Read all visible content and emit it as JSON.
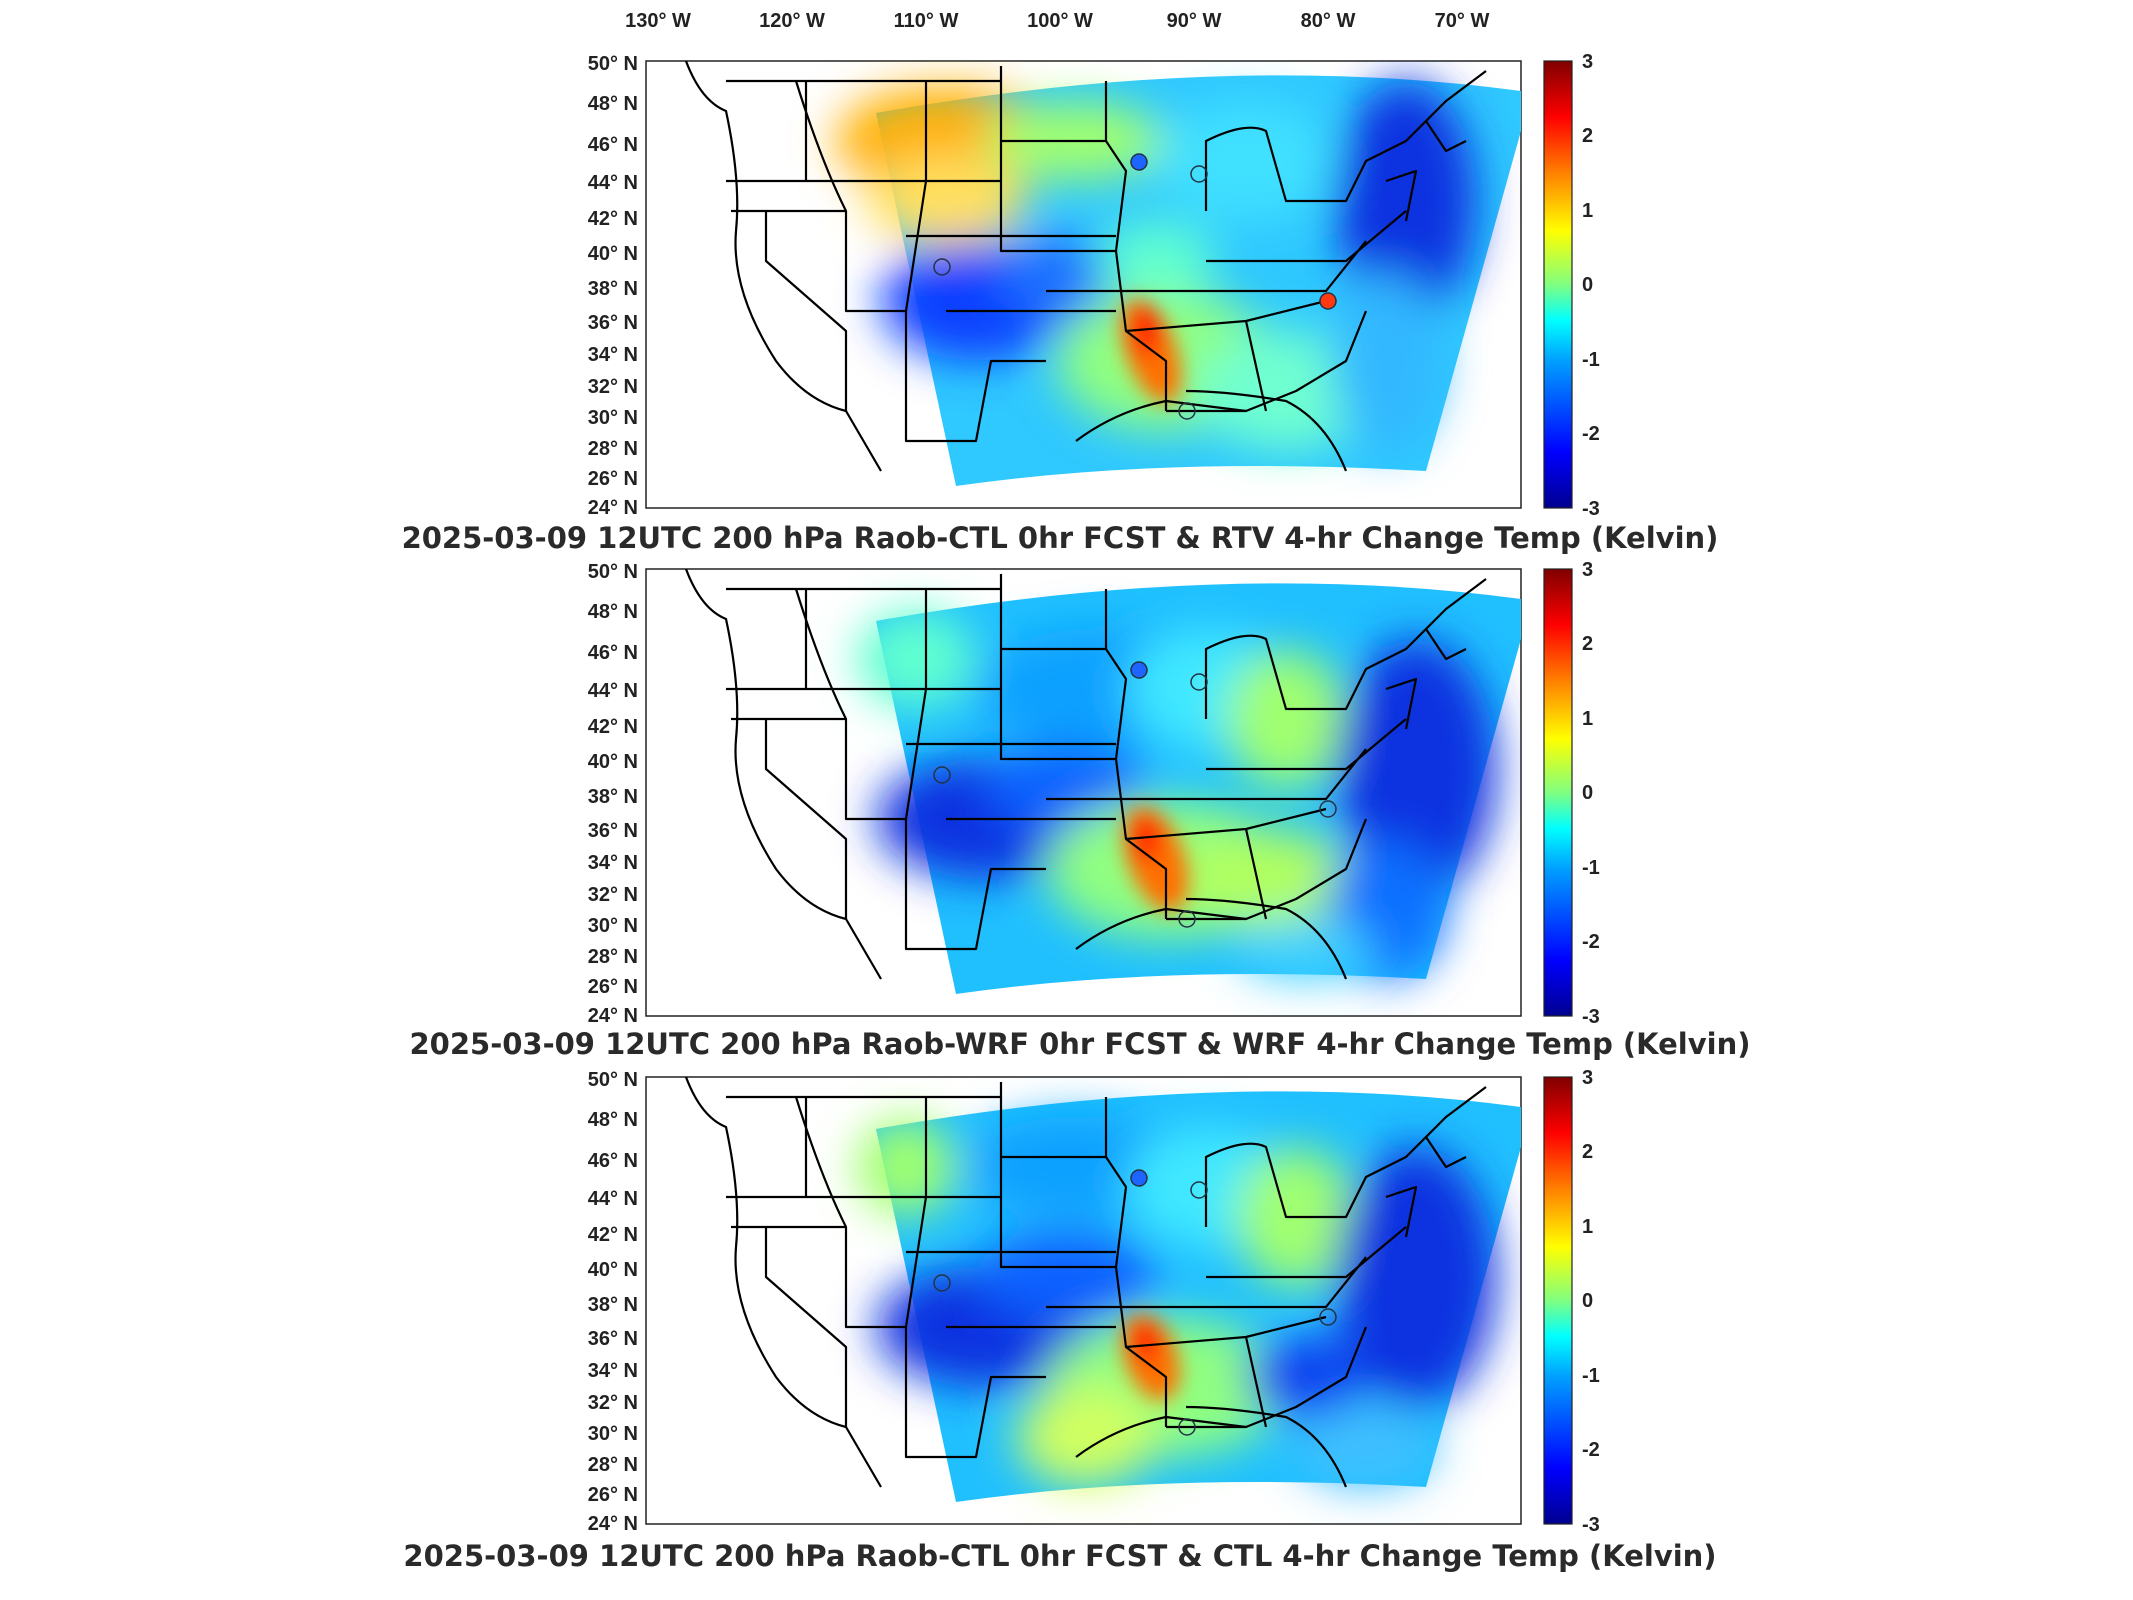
{
  "figure": {
    "longitude_labels": [
      "130° W",
      "120° W",
      "110° W",
      "100° W",
      "90° W",
      "80° W",
      "70° W"
    ],
    "latitude_labels": [
      "50° N",
      "48° N",
      "46° N",
      "44° N",
      "42° N",
      "40° N",
      "38° N",
      "36° N",
      "34° N",
      "32° N",
      "30° N",
      "28° N",
      "26° N",
      "24° N"
    ],
    "colorbar": {
      "ticks": [
        "3",
        "2",
        "1",
        "0",
        "-1",
        "-2",
        "-3"
      ],
      "range": [
        -3,
        3
      ],
      "colormap": "jet",
      "colors": [
        "#00008f",
        "#0000ff",
        "#00a0ff",
        "#00ffff",
        "#80ff80",
        "#ffff00",
        "#ff8000",
        "#ff0000",
        "#800000"
      ]
    },
    "panels": [
      {
        "title": "2025-03-09 12UTC 200 hPa Raob-CTL 0hr FCST & RTV 4-hr Change Temp (Kelvin)",
        "station_markers": [
          "blue",
          "empty",
          "empty",
          "red",
          "empty"
        ]
      },
      {
        "title": "2025-03-09 12UTC 200 hPa Raob-WRF 0hr FCST & WRF 4-hr Change Temp (Kelvin)",
        "station_markers": [
          "blue",
          "empty",
          "empty",
          "empty",
          "empty"
        ]
      },
      {
        "title": "2025-03-09 12UTC 200 hPa Raob-CTL 0hr FCST & CTL 4-hr Change Temp (Kelvin)",
        "station_markers": [
          "blue",
          "empty",
          "empty",
          "empty",
          "empty"
        ]
      }
    ]
  }
}
